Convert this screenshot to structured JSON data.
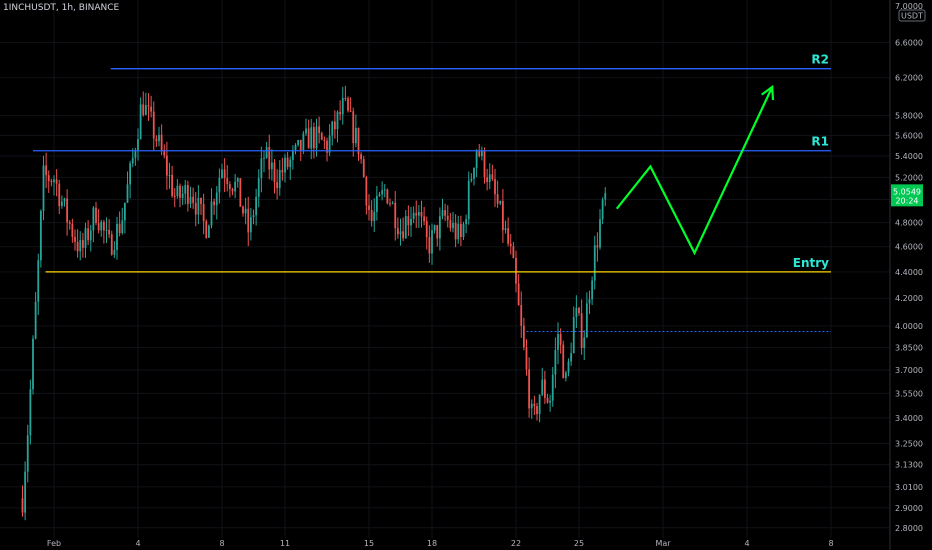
{
  "header": {
    "symbol": "1INCHUSDT, 1h, BINANCE"
  },
  "price_axis": {
    "currency": "USDT",
    "top_partial": "7.0000",
    "current_price": "5.0549",
    "countdown": "20:24"
  },
  "colors": {
    "background": "#000000",
    "up_candle": "#26a69a",
    "down_candle": "#ef5350",
    "resistance": "#2962ff",
    "entry": "#ffd600",
    "projection": "#00ff2a",
    "label": "#2ee6d6",
    "current_price_badge": "#00c853"
  },
  "chart_data": {
    "type": "line",
    "title": "",
    "y_scale": "log",
    "ylim": [
      2.75,
      7.05
    ],
    "x_ticks": [
      "Feb",
      "4",
      "8",
      "11",
      "15",
      "18",
      "22",
      "25",
      "Mar",
      "4",
      "8",
      "11",
      "15"
    ],
    "y_ticks": [
      "6.6000",
      "6.2000",
      "5.8000",
      "5.6000",
      "5.4000",
      "5.2000",
      "5.0000",
      "4.8000",
      "4.6000",
      "4.4000",
      "4.2000",
      "4.0000",
      "3.8500",
      "3.7000",
      "3.5500",
      "3.4000",
      "3.2500",
      "3.1300",
      "3.0100",
      "2.9000",
      "2.8000"
    ],
    "y_tick_values": [
      6.6,
      6.2,
      5.8,
      5.6,
      5.4,
      5.2,
      5.0,
      4.8,
      4.6,
      4.4,
      4.2,
      4.0,
      3.85,
      3.7,
      3.55,
      3.4,
      3.25,
      3.13,
      3.01,
      2.9,
      2.8
    ],
    "x_tick_days": [
      0,
      4,
      8,
      11,
      15,
      18,
      22,
      25,
      29,
      33,
      37,
      40,
      44
    ],
    "price_path_days": [
      -1.5,
      -1.2,
      -0.8,
      -0.5,
      0.0,
      0.6,
      1.3,
      2.0,
      2.6,
      3.2,
      3.7,
      4.2,
      5.0,
      5.8,
      6.5,
      7.2,
      8.0,
      8.7,
      9.3,
      10.0,
      10.6,
      11.3,
      12.2,
      13.0,
      13.8,
      14.5,
      15.1,
      15.8,
      16.5,
      17.2,
      17.8,
      18.6,
      19.4,
      20.1,
      20.6,
      21.2,
      21.8,
      22.3,
      22.8,
      23.2,
      23.6,
      24.0,
      24.4,
      24.8,
      25.2,
      25.6,
      26.0,
      26.3
    ],
    "price_path_values": [
      2.95,
      3.4,
      4.3,
      5.2,
      5.2,
      4.85,
      4.55,
      4.9,
      4.6,
      4.8,
      5.3,
      5.95,
      5.5,
      5.0,
      5.1,
      4.75,
      5.3,
      5.1,
      4.7,
      5.4,
      5.2,
      5.35,
      5.6,
      5.5,
      5.9,
      5.5,
      4.8,
      5.1,
      4.75,
      4.95,
      4.6,
      4.85,
      4.65,
      5.5,
      5.25,
      4.9,
      4.5,
      3.9,
      3.35,
      3.6,
      3.5,
      3.95,
      3.6,
      4.1,
      3.9,
      4.4,
      4.8,
      5.05
    ],
    "levels": [
      {
        "name": "R2",
        "value": 6.3,
        "start_day": 2.7,
        "end_day": 37
      },
      {
        "name": "R1",
        "value": 5.45,
        "start_day": -1.0,
        "end_day": 37
      },
      {
        "name": "Entry",
        "value": 4.4,
        "start_day": -0.4,
        "end_day": 37
      },
      {
        "name": "",
        "value": 3.96,
        "start_day": 22.5,
        "end_day": 37,
        "style": "dotted"
      }
    ],
    "projection_days": [
      26.8,
      28.4,
      30.5,
      34.2
    ],
    "projection_values": [
      4.92,
      5.3,
      4.55,
      6.1
    ]
  }
}
